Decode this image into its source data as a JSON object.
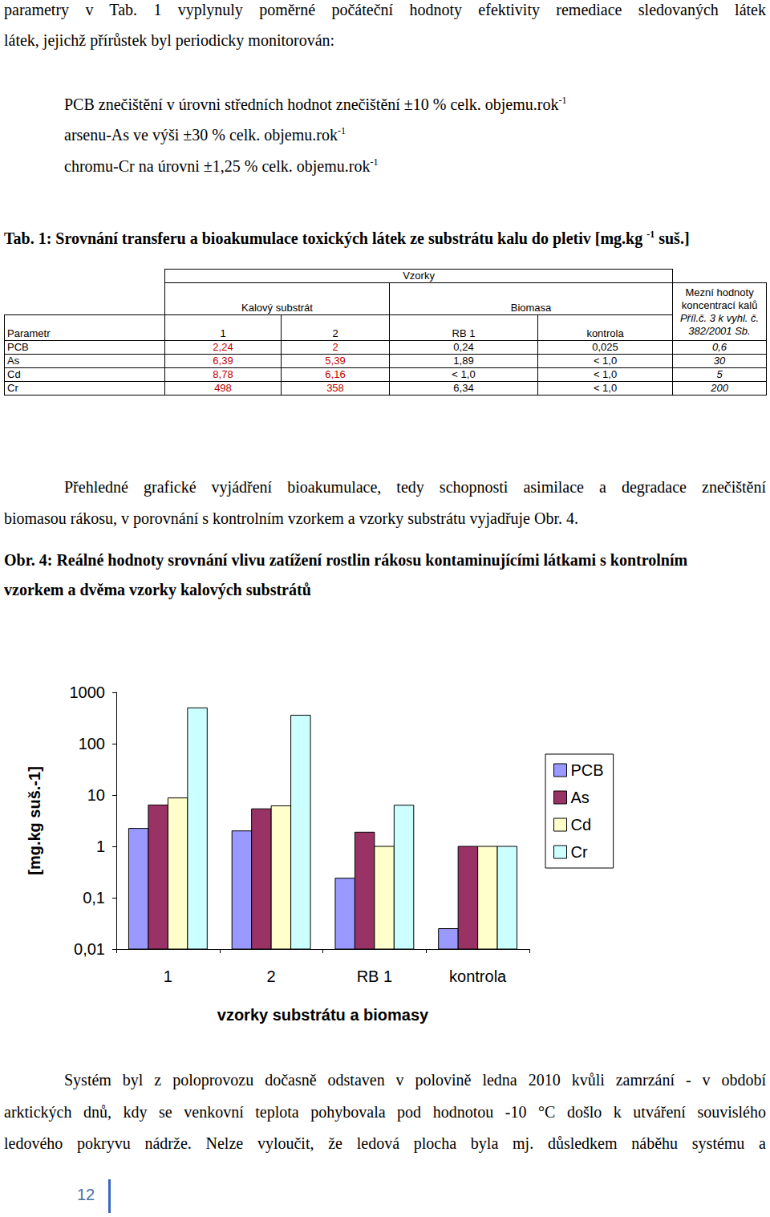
{
  "intro_lines": [
    "parametry v Tab. 1 vyplynuly poměrné počáteční hodnoty efektivity remediace sledovaných látek",
    "látek, jejichž přírůstek byl periodicky monitorován:"
  ],
  "bullets": [
    [
      {
        "text": "PCB znečištění v úrovni středních hodnot znečištění ±10 % celk. objemu.rok"
      },
      {
        "sup": "-1"
      }
    ],
    [
      {
        "text": "arsenu-As ve výši ±30 % celk. objemu.rok"
      },
      {
        "sup": "-1"
      }
    ],
    [
      {
        "text": "chromu-Cr na úrovni ±1,25 % celk. objemu.rok"
      },
      {
        "sup": "-1"
      }
    ]
  ],
  "table_caption": [
    {
      "text": "Tab. 1: Srovnání transferu a bioakumulace toxických látek ze substrátu kalu do pletiv [mg.kg "
    },
    {
      "sup": "-1"
    },
    {
      "text": " suš.]"
    }
  ],
  "table": {
    "group_header": "Vzorky",
    "subheaders": [
      "Kalový substrát",
      "Biomasa"
    ],
    "limit_header": [
      "Mezní hodnoty",
      "koncentrací kalů",
      "Příl.č. 3 k vyhl. č.",
      "382/2001 Sb."
    ],
    "columns": [
      "Parametr",
      "1",
      "2",
      "RB 1",
      "kontrola"
    ],
    "rows": [
      [
        "PCB",
        "2,24",
        "2",
        "0,24",
        "0,025",
        "0,6"
      ],
      [
        "As",
        "6,39",
        "5,39",
        "1,89",
        "< 1,0",
        "30"
      ],
      [
        "Cd",
        "8,78",
        "6,16",
        "< 1,0",
        "< 1,0",
        "5"
      ],
      [
        "Cr",
        "498",
        "358",
        "6,34",
        "< 1,0",
        "200"
      ]
    ]
  },
  "paragraph_1": [
    "Přehledné grafické vyjádření bioakumulace, tedy schopnosti asimilace a degradace znečištění",
    "biomasou rákosu, v porovnání s kontrolním vzorkem a vzorky substrátu vyjadřuje Obr. 4."
  ],
  "figure_caption": [
    "Obr. 4: Reálné hodnoty srovnání vlivu zatížení rostlin rákosu kontaminujícími látkami s kontrolním",
    "vzorkem a dvěma vzorky kalových substrátů"
  ],
  "chart_data": {
    "type": "bar",
    "xlabel": "vzorky substrátu a biomasy",
    "ylabel": "[mg.kg suš.-1]",
    "categories": [
      "1",
      "2",
      "RB 1",
      "kontrola"
    ],
    "series": [
      {
        "name": "PCB",
        "color": "#9999ff",
        "values": [
          2.24,
          2,
          0.24,
          0.025
        ]
      },
      {
        "name": "As",
        "color": "#993366",
        "values": [
          6.39,
          5.39,
          1.89,
          1
        ]
      },
      {
        "name": "Cd",
        "color": "#ffffcc",
        "values": [
          8.78,
          6.16,
          1,
          1
        ]
      },
      {
        "name": "Cr",
        "color": "#ccffff",
        "values": [
          498,
          358,
          6.34,
          1
        ]
      }
    ],
    "log": "y",
    "ylim": [
      0.01,
      1000
    ],
    "yticks": [
      {
        "value": 0.01,
        "label": "0,01"
      },
      {
        "value": 0.1,
        "label": "0,1"
      },
      1,
      10,
      100,
      1000
    ],
    "grid": false,
    "legend": "right"
  },
  "paragraph_2": [
    "Systém byl z poloprovozu dočasně odstaven v polovině ledna 2010 kvůli zamrzání - v období",
    "arktických dnů, kdy se venkovní teplota pohybovala pod hodnotou -10 °C došlo k utváření souvislého",
    "ledového pokryvu nádrže. Nelze vyloučit, že ledová plocha byla mj. důsledkem náběhu systému a"
  ],
  "page_number": "12"
}
